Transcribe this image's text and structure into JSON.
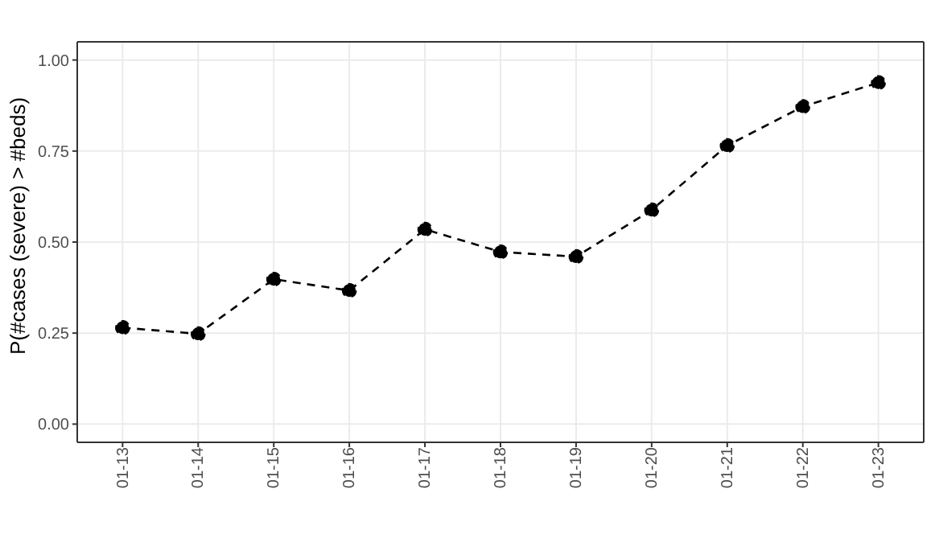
{
  "chart_data": {
    "type": "line",
    "ylabel": "P(#cases (severe) > #beds)",
    "categories": [
      "01-13",
      "01-14",
      "01-15",
      "01-16",
      "01-17",
      "01-18",
      "01-19",
      "01-20",
      "01-21",
      "01-22",
      "01-23"
    ],
    "series": [
      {
        "color": "#000000",
        "values": [
          0.265,
          0.248,
          0.398,
          0.367,
          0.535,
          0.473,
          0.46,
          0.588,
          0.765,
          0.872,
          0.938
        ]
      }
    ],
    "ylim": [
      -0.05,
      1.05
    ],
    "yticks": [
      {
        "value": 0,
        "label": "0.00"
      },
      {
        "value": 0.25,
        "label": "0.25"
      },
      {
        "value": 0.5,
        "label": "0.50"
      },
      {
        "value": 0.75,
        "label": "0.75"
      },
      {
        "value": 1,
        "label": "1.00"
      }
    ],
    "grid": true,
    "marker": "circle",
    "line_style": "dashed",
    "legend": false
  }
}
